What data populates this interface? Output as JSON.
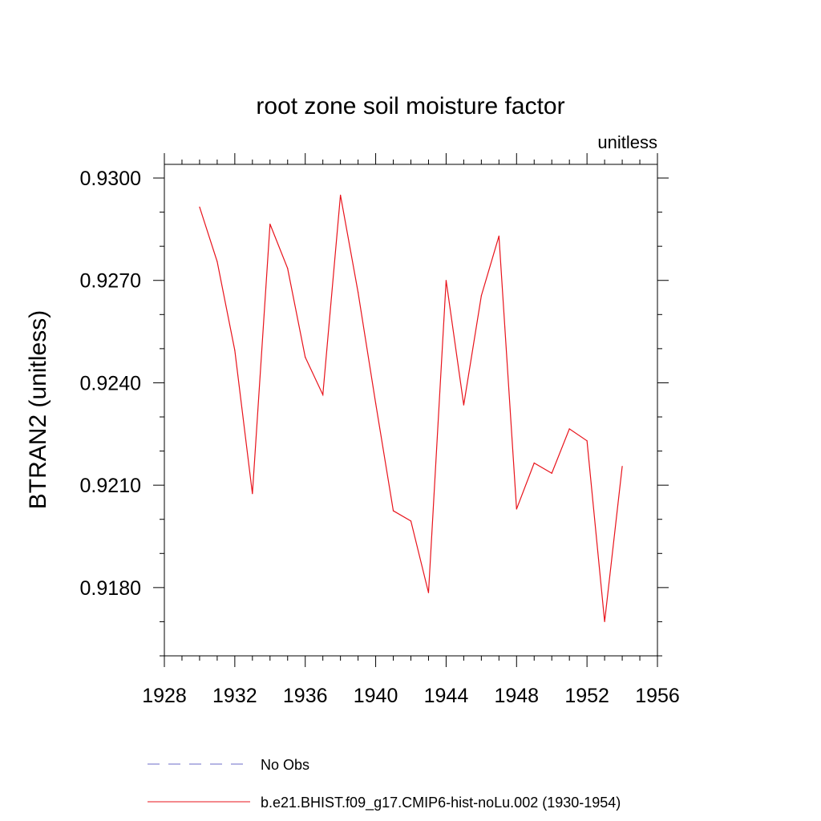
{
  "chart_data": {
    "type": "line",
    "title": "root zone soil moisture factor",
    "units_label": "unitless",
    "ylabel": "BTRAN2  (unitless)",
    "xlabel": "",
    "xlim": [
      1928,
      1956
    ],
    "ylim": [
      0.916,
      0.9304
    ],
    "x_ticks": [
      "1928",
      "1932",
      "1936",
      "1940",
      "1944",
      "1948",
      "1952",
      "1956"
    ],
    "y_ticks": [
      "0.9180",
      "0.9210",
      "0.9240",
      "0.9270",
      "0.9300"
    ],
    "grid": false,
    "legend_position": "bottom",
    "legend": [
      {
        "label": "No Obs",
        "color": "#6b6bc8",
        "style": "dashed"
      },
      {
        "label": "b.e21.BHIST.f09_g17.CMIP6-hist-noLu.002 (1930-1954)",
        "color": "#e8131b",
        "style": "solid"
      }
    ],
    "series": [
      {
        "name": "b.e21.BHIST.f09_g17.CMIP6-hist-noLu.002 (1930-1954)",
        "color": "#e8131b",
        "x": [
          1930,
          1931,
          1932,
          1933,
          1934,
          1935,
          1936,
          1937,
          1938,
          1939,
          1940,
          1941,
          1942,
          1943,
          1944,
          1945,
          1946,
          1947,
          1948,
          1949,
          1950,
          1951,
          1952,
          1953,
          1954
        ],
        "y": [
          0.92915,
          0.92755,
          0.92495,
          0.92075,
          0.92865,
          0.92735,
          0.92475,
          0.92365,
          0.9295,
          0.92665,
          0.9234,
          0.92025,
          0.91995,
          0.91785,
          0.927,
          0.92335,
          0.92655,
          0.9283,
          0.9203,
          0.92165,
          0.92135,
          0.92265,
          0.9223,
          0.917,
          0.92155
        ]
      }
    ]
  }
}
